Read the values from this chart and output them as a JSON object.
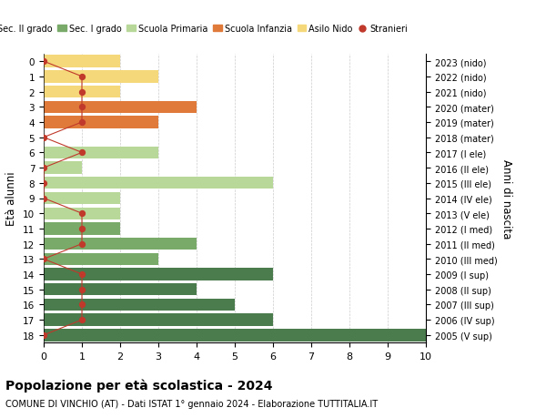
{
  "ages": [
    18,
    17,
    16,
    15,
    14,
    13,
    12,
    11,
    10,
    9,
    8,
    7,
    6,
    5,
    4,
    3,
    2,
    1,
    0
  ],
  "right_labels": [
    "2005 (V sup)",
    "2006 (IV sup)",
    "2007 (III sup)",
    "2008 (II sup)",
    "2009 (I sup)",
    "2010 (III med)",
    "2011 (II med)",
    "2012 (I med)",
    "2013 (V ele)",
    "2014 (IV ele)",
    "2015 (III ele)",
    "2016 (II ele)",
    "2017 (I ele)",
    "2018 (mater)",
    "2019 (mater)",
    "2020 (mater)",
    "2021 (nido)",
    "2022 (nido)",
    "2023 (nido)"
  ],
  "bar_values": [
    10,
    6,
    5,
    4,
    6,
    3,
    4,
    2,
    2,
    2,
    6,
    1,
    3,
    0,
    3,
    4,
    2,
    3,
    2
  ],
  "stranieri_values": [
    0,
    1,
    1,
    1,
    1,
    0,
    1,
    1,
    1,
    0,
    0,
    0,
    1,
    0,
    1,
    1,
    1,
    1,
    0
  ],
  "bar_colors": [
    "#4a7c4e",
    "#4a7c4e",
    "#4a7c4e",
    "#4a7c4e",
    "#4a7c4e",
    "#7aaa6a",
    "#7aaa6a",
    "#7aaa6a",
    "#b8d89a",
    "#b8d89a",
    "#b8d89a",
    "#b8d89a",
    "#b8d89a",
    "#e07a3a",
    "#e07a3a",
    "#e07a3a",
    "#f5d87a",
    "#f5d87a",
    "#f5d87a"
  ],
  "legend_labels": [
    "Sec. II grado",
    "Sec. I grado",
    "Scuola Primaria",
    "Scuola Infanzia",
    "Asilo Nido",
    "Stranieri"
  ],
  "legend_colors": [
    "#4a7c4e",
    "#7aaa6a",
    "#b8d89a",
    "#e07a3a",
    "#f5d87a",
    "#c0392b"
  ],
  "stranieri_color": "#c0392b",
  "stranieri_line_color": "#c0392b",
  "ylabel_left": "Età alunni",
  "ylabel_right": "Anni di nascita",
  "title": "Popolazione per età scolastica - 2024",
  "subtitle": "COMUNE DI VINCHIO (AT) - Dati ISTAT 1° gennaio 2024 - Elaborazione TUTTITALIA.IT",
  "xlim": [
    0,
    10
  ],
  "background_color": "#ffffff",
  "grid_color": "#cccccc"
}
